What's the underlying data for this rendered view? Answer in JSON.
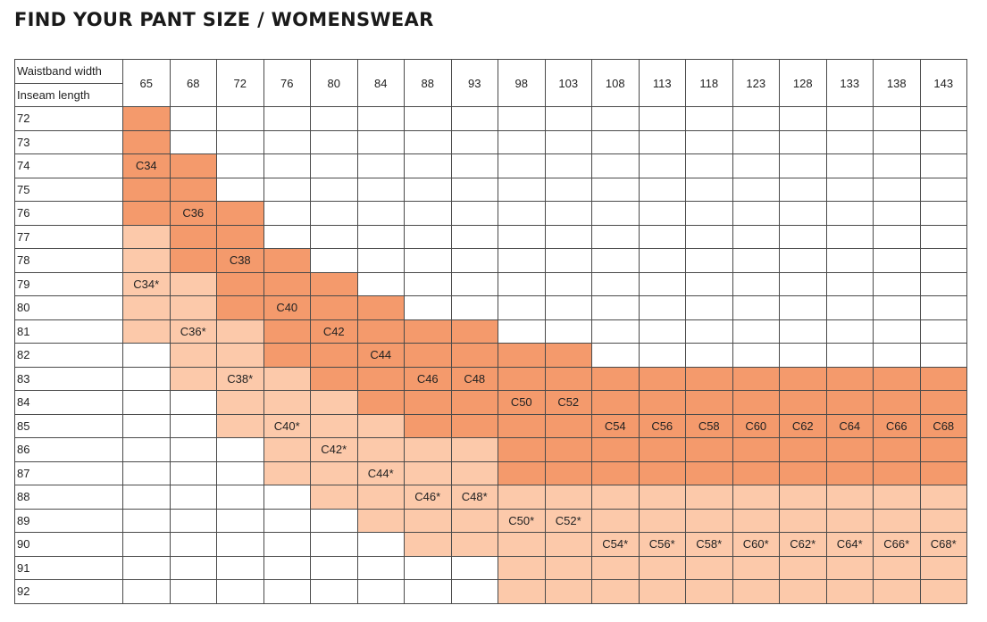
{
  "title": "FIND YOUR PANT SIZE / WOMENSWEAR",
  "header": {
    "waistband_label": "Waistband width",
    "inseam_label": "Inseam length"
  },
  "waistbands": [
    "65",
    "68",
    "72",
    "76",
    "80",
    "84",
    "88",
    "93",
    "98",
    "103",
    "108",
    "113",
    "118",
    "123",
    "128",
    "133",
    "138",
    "143"
  ],
  "inseams": [
    "72",
    "73",
    "74",
    "75",
    "76",
    "77",
    "78",
    "79",
    "80",
    "81",
    "82",
    "83",
    "84",
    "85",
    "86",
    "87",
    "88",
    "89",
    "90",
    "91",
    "92"
  ],
  "colors": {
    "regular": "#f49a6c",
    "asterisk": "#fcc9aa",
    "grid": "#4a4a4a"
  },
  "regular_sizes": [
    {
      "size": "C34",
      "waist_cols": [
        0
      ],
      "inseam_rows": [
        0,
        4
      ],
      "label_row": 2
    },
    {
      "size": "C36",
      "waist_cols": [
        1
      ],
      "inseam_rows": [
        2,
        6
      ],
      "label_row": 4
    },
    {
      "size": "C38",
      "waist_cols": [
        2
      ],
      "inseam_rows": [
        4,
        8
      ],
      "label_row": 6
    },
    {
      "size": "C40",
      "waist_cols": [
        3
      ],
      "inseam_rows": [
        6,
        10
      ],
      "label_row": 8
    },
    {
      "size": "C42",
      "waist_cols": [
        4
      ],
      "inseam_rows": [
        7,
        11
      ],
      "label_row": 9
    },
    {
      "size": "C44",
      "waist_cols": [
        5
      ],
      "inseam_rows": [
        8,
        12
      ],
      "label_row": 10
    },
    {
      "size": "C46",
      "waist_cols": [
        6
      ],
      "inseam_rows": [
        9,
        13
      ],
      "label_row": 11
    },
    {
      "size": "C48",
      "waist_cols": [
        7
      ],
      "inseam_rows": [
        9,
        13
      ],
      "label_row": 11
    },
    {
      "size": "C50",
      "waist_cols": [
        8
      ],
      "inseam_rows": [
        10,
        15
      ],
      "label_row": 12
    },
    {
      "size": "C52",
      "waist_cols": [
        9
      ],
      "inseam_rows": [
        10,
        15
      ],
      "label_row": 12
    },
    {
      "size": "C54",
      "waist_cols": [
        10
      ],
      "inseam_rows": [
        11,
        15
      ],
      "label_row": 13
    },
    {
      "size": "C56",
      "waist_cols": [
        11
      ],
      "inseam_rows": [
        11,
        15
      ],
      "label_row": 13
    },
    {
      "size": "C58",
      "waist_cols": [
        12
      ],
      "inseam_rows": [
        11,
        15
      ],
      "label_row": 13
    },
    {
      "size": "C60",
      "waist_cols": [
        13
      ],
      "inseam_rows": [
        11,
        15
      ],
      "label_row": 13
    },
    {
      "size": "C62",
      "waist_cols": [
        14
      ],
      "inseam_rows": [
        11,
        15
      ],
      "label_row": 13
    },
    {
      "size": "C64",
      "waist_cols": [
        15
      ],
      "inseam_rows": [
        11,
        15
      ],
      "label_row": 13
    },
    {
      "size": "C66",
      "waist_cols": [
        16
      ],
      "inseam_rows": [
        11,
        15
      ],
      "label_row": 13
    },
    {
      "size": "C68",
      "waist_cols": [
        17
      ],
      "inseam_rows": [
        11,
        15
      ],
      "label_row": 13
    }
  ],
  "asterisk_sizes": [
    {
      "size": "C34*",
      "waist_cols": [
        0
      ],
      "inseam_rows": [
        5,
        9
      ],
      "label_row": 7
    },
    {
      "size": "C36*",
      "waist_cols": [
        1
      ],
      "inseam_rows": [
        7,
        11
      ],
      "label_row": 9
    },
    {
      "size": "C38*",
      "waist_cols": [
        2
      ],
      "inseam_rows": [
        9,
        13
      ],
      "label_row": 11
    },
    {
      "size": "C40*",
      "waist_cols": [
        3
      ],
      "inseam_rows": [
        11,
        15
      ],
      "label_row": 13
    },
    {
      "size": "C42*",
      "waist_cols": [
        4
      ],
      "inseam_rows": [
        12,
        16
      ],
      "label_row": 14
    },
    {
      "size": "C44*",
      "waist_cols": [
        5
      ],
      "inseam_rows": [
        13,
        17
      ],
      "label_row": 15
    },
    {
      "size": "C46*",
      "waist_cols": [
        6
      ],
      "inseam_rows": [
        14,
        18
      ],
      "label_row": 16
    },
    {
      "size": "C48*",
      "waist_cols": [
        7
      ],
      "inseam_rows": [
        14,
        18
      ],
      "label_row": 16
    },
    {
      "size": "C50*",
      "waist_cols": [
        8
      ],
      "inseam_rows": [
        16,
        20
      ],
      "label_row": 17
    },
    {
      "size": "C52*",
      "waist_cols": [
        9
      ],
      "inseam_rows": [
        16,
        20
      ],
      "label_row": 17
    },
    {
      "size": "C54*",
      "waist_cols": [
        10
      ],
      "inseam_rows": [
        16,
        20
      ],
      "label_row": 18
    },
    {
      "size": "C56*",
      "waist_cols": [
        11
      ],
      "inseam_rows": [
        16,
        20
      ],
      "label_row": 18
    },
    {
      "size": "C58*",
      "waist_cols": [
        12
      ],
      "inseam_rows": [
        16,
        20
      ],
      "label_row": 18
    },
    {
      "size": "C60*",
      "waist_cols": [
        13
      ],
      "inseam_rows": [
        16,
        20
      ],
      "label_row": 18
    },
    {
      "size": "C62*",
      "waist_cols": [
        14
      ],
      "inseam_rows": [
        16,
        20
      ],
      "label_row": 18
    },
    {
      "size": "C64*",
      "waist_cols": [
        15
      ],
      "inseam_rows": [
        16,
        20
      ],
      "label_row": 18
    },
    {
      "size": "C66*",
      "waist_cols": [
        16
      ],
      "inseam_rows": [
        16,
        20
      ],
      "label_row": 18
    },
    {
      "size": "C68*",
      "waist_cols": [
        17
      ],
      "inseam_rows": [
        16,
        20
      ],
      "label_row": 18
    }
  ]
}
